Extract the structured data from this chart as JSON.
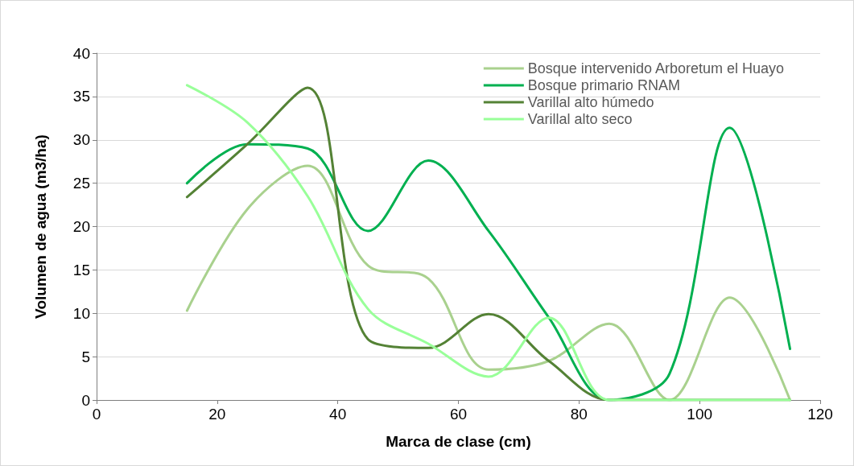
{
  "chart_data": {
    "type": "line",
    "xlabel": "Marca de clase (cm)",
    "ylabel": "Volumen de agua (m3/ha)",
    "x": [
      15,
      25,
      35,
      45,
      55,
      65,
      75,
      85,
      95,
      105,
      115
    ],
    "series": [
      {
        "name": "Bosque intervenido Arboretum el Huayo",
        "color": "#a9d18e",
        "values": [
          10.3,
          22,
          27,
          15.5,
          14,
          3.5,
          4.5,
          8.8,
          0,
          11.8,
          0
        ]
      },
      {
        "name": "Bosque primario RNAM",
        "color": "#00b050",
        "values": [
          25,
          29.5,
          29,
          19.5,
          27.6,
          19.5,
          9.5,
          0,
          3,
          31.4,
          5.9
        ]
      },
      {
        "name": "Varillal alto húmedo",
        "color": "#548235",
        "values": [
          23.4,
          29.5,
          36,
          7,
          6,
          9.9,
          4.5,
          0,
          0,
          0,
          0
        ]
      },
      {
        "name": "Varillal alto seco",
        "color": "#99ff99",
        "values": [
          36.3,
          32,
          23.5,
          10.5,
          6.5,
          2.7,
          9.5,
          0,
          0,
          0,
          0
        ]
      }
    ],
    "xlim": [
      0,
      120
    ],
    "xticks": [
      0,
      20,
      40,
      60,
      80,
      100,
      120
    ],
    "ylim": [
      0,
      40
    ],
    "yticks": [
      0,
      5,
      10,
      15,
      20,
      25,
      30,
      35,
      40
    ],
    "grid": "y",
    "legend": "top right",
    "marker": "none",
    "line_style": "solid"
  }
}
